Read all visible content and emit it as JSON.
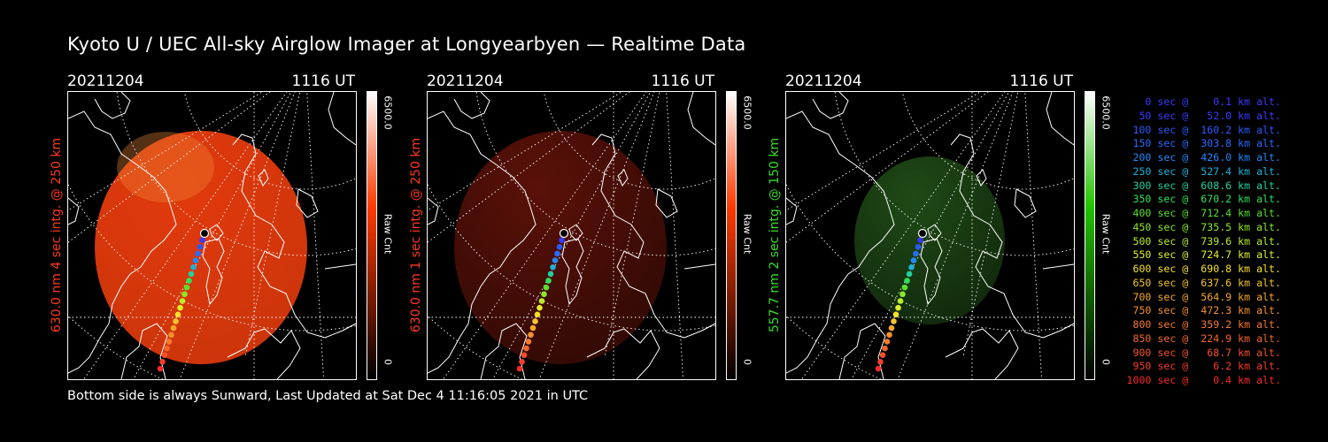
{
  "title": "Kyoto U / UEC All-sky Airglow Imager at Longyearbyen — Realtime Data",
  "footer": "Bottom side is always Sunward, Last Updated at Sat Dec  4 11:16:05 2021 in UTC",
  "panels": [
    {
      "date": "20211204",
      "time": "1116 UT",
      "ylabel": "630.0 nm 4 sec intg. @ 250 km",
      "label_color": "#ff3a1a",
      "image_color": "#e23a0c",
      "image_intensity": 0.9,
      "cbar_max": "6500.0",
      "cbar_min": "0",
      "cbar_unit": "Raw Cnt",
      "cbar_color": "#ff3a00"
    },
    {
      "date": "20211204",
      "time": "1116 UT",
      "ylabel": "630.0 nm 1 sec intg. @ 250 km",
      "label_color": "#ff3a1a",
      "image_color": "#5a1108",
      "image_intensity": 0.55,
      "cbar_max": "6500.0",
      "cbar_min": "0",
      "cbar_unit": "Raw Cnt",
      "cbar_color": "#ff3a00"
    },
    {
      "date": "20211204",
      "time": "1116 UT",
      "ylabel": "557.7 nm 2 sec intg. @ 150 km",
      "label_color": "#3adf2a",
      "image_color": "#1f4a16",
      "image_intensity": 0.55,
      "cbar_max": "6500.0",
      "cbar_min": "0",
      "cbar_unit": "Raw Cnt",
      "cbar_color": "#22c400"
    }
  ],
  "legend": [
    {
      "text": "  0 sec @    0.1 km alt.",
      "color": "#3a3aff"
    },
    {
      "text": " 50 sec @   52.0 km alt.",
      "color": "#3a3aff"
    },
    {
      "text": "100 sec @  160.2 km alt.",
      "color": "#2a5aff"
    },
    {
      "text": "150 sec @  303.8 km alt.",
      "color": "#2a6aff"
    },
    {
      "text": "200 sec @  426.0 km alt.",
      "color": "#1f8aff"
    },
    {
      "text": "250 sec @  527.4 km alt.",
      "color": "#1fb0d8"
    },
    {
      "text": "300 sec @  608.6 km alt.",
      "color": "#1fd0a0"
    },
    {
      "text": "350 sec @  670.2 km alt.",
      "color": "#2fe05a"
    },
    {
      "text": "400 sec @  712.4 km alt.",
      "color": "#5ae02a"
    },
    {
      "text": "450 sec @  735.5 km alt.",
      "color": "#8ae82a"
    },
    {
      "text": "500 sec @  739.6 km alt.",
      "color": "#b8ee2a"
    },
    {
      "text": "550 sec @  724.7 km alt.",
      "color": "#e0ee2a"
    },
    {
      "text": "600 sec @  690.8 km alt.",
      "color": "#f5e02a"
    },
    {
      "text": "650 sec @  637.6 km alt.",
      "color": "#f5c42a"
    },
    {
      "text": "700 sec @  564.9 km alt.",
      "color": "#f5a82a"
    },
    {
      "text": "750 sec @  472.3 km alt.",
      "color": "#f5902a"
    },
    {
      "text": "800 sec @  359.2 km alt.",
      "color": "#f57a2a"
    },
    {
      "text": "850 sec @  224.9 km alt.",
      "color": "#f5662a"
    },
    {
      "text": "900 sec @   68.7 km alt.",
      "color": "#f5502a"
    },
    {
      "text": "950 sec @    6.2 km alt.",
      "color": "#f53e2a"
    },
    {
      "text": "1000 sec @    0.4 km alt.",
      "color": "#f52a2a"
    }
  ]
}
